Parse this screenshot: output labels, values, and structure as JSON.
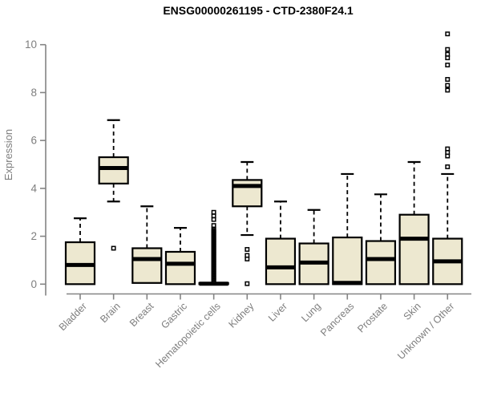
{
  "chart_data": {
    "type": "boxplot",
    "title": "ENSG00000261195 - CTD-2380F24.1",
    "ylabel": "Expression",
    "xlabel": "",
    "ylim": [
      0,
      10.5
    ],
    "yticks": [
      0,
      2,
      4,
      6,
      8,
      10
    ],
    "grid": false,
    "legend_position": "none",
    "xtick_rotation_deg": 45,
    "categories": [
      "Bladder",
      "Brain",
      "Breast",
      "Gastric",
      "Hematopoietic cells",
      "Kidney",
      "Liver",
      "Lung",
      "Pancreas",
      "Prostate",
      "Skin",
      "Unknown / Other"
    ],
    "series": [
      {
        "label": "Bladder",
        "whisker_low": 0,
        "q1": 0,
        "median": 0.8,
        "q3": 1.75,
        "whisker_high": 2.75,
        "outliers": []
      },
      {
        "label": "Brain",
        "whisker_low": 3.45,
        "q1": 4.2,
        "median": 4.85,
        "q3": 5.3,
        "whisker_high": 6.85,
        "outliers": [
          1.5
        ]
      },
      {
        "label": "Breast",
        "whisker_low": 0.05,
        "q1": 0.05,
        "median": 1.05,
        "q3": 1.5,
        "whisker_high": 3.25,
        "outliers": []
      },
      {
        "label": "Gastric",
        "whisker_low": 0,
        "q1": 0,
        "median": 0.85,
        "q3": 1.35,
        "whisker_high": 2.35,
        "outliers": []
      },
      {
        "label": "Hematopoietic cells",
        "whisker_low": 0,
        "q1": 0,
        "median": 0.02,
        "q3": 0.05,
        "whisker_high": 0.05,
        "outliers": [
          0.1,
          0.15,
          0.2,
          0.25,
          0.3,
          0.35,
          0.4,
          0.45,
          0.5,
          0.55,
          0.6,
          0.65,
          0.7,
          0.75,
          0.8,
          0.85,
          0.9,
          0.95,
          1.0,
          1.05,
          1.1,
          1.15,
          1.2,
          1.25,
          1.3,
          1.35,
          1.4,
          1.45,
          1.5,
          1.55,
          1.6,
          1.65,
          1.7,
          1.75,
          1.8,
          1.85,
          1.9,
          1.95,
          2.0,
          2.05,
          2.1,
          2.15,
          2.2,
          2.25,
          2.3,
          2.45,
          2.7,
          2.85,
          3.0
        ]
      },
      {
        "label": "Kidney",
        "whisker_low": 2.05,
        "q1": 3.25,
        "median": 4.1,
        "q3": 4.35,
        "whisker_high": 5.1,
        "outliers": [
          1.45,
          1.2,
          1.05,
          0.02
        ]
      },
      {
        "label": "Liver",
        "whisker_low": 0,
        "q1": 0,
        "median": 0.7,
        "q3": 1.9,
        "whisker_high": 3.45,
        "outliers": []
      },
      {
        "label": "Lung",
        "whisker_low": 0,
        "q1": 0,
        "median": 0.9,
        "q3": 1.7,
        "whisker_high": 3.1,
        "outliers": []
      },
      {
        "label": "Pancreas",
        "whisker_low": 0,
        "q1": 0,
        "median": 0.05,
        "q3": 1.95,
        "whisker_high": 4.6,
        "outliers": []
      },
      {
        "label": "Prostate",
        "whisker_low": 0,
        "q1": 0,
        "median": 1.05,
        "q3": 1.8,
        "whisker_high": 3.75,
        "outliers": []
      },
      {
        "label": "Skin",
        "whisker_low": 0,
        "q1": 0,
        "median": 1.9,
        "q3": 2.9,
        "whisker_high": 5.1,
        "outliers": []
      },
      {
        "label": "Unknown / Other",
        "whisker_low": 0,
        "q1": 0,
        "median": 0.95,
        "q3": 1.9,
        "whisker_high": 4.6,
        "outliers": [
          4.9,
          5.35,
          5.5,
          5.65,
          8.1,
          8.3,
          8.55,
          9.15,
          9.45,
          9.6,
          9.8,
          10.45
        ]
      }
    ],
    "colors": {
      "box_fill": "#ede8d0",
      "box_stroke": "#000000",
      "median": "#000000",
      "whisker": "#000000",
      "outlier": "#000000",
      "axis": "#848484",
      "tick_label": "#7e7e7e",
      "title": "#000000",
      "background": "#ffffff"
    }
  }
}
